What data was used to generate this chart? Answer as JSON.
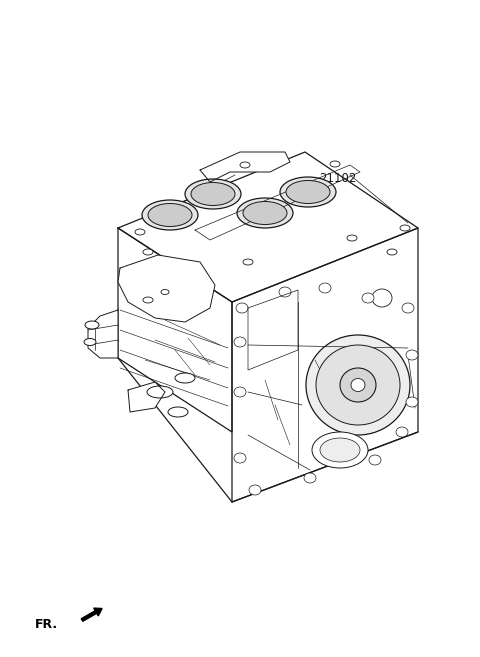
{
  "bg_color": "#ffffff",
  "line_color": "#1a1a1a",
  "line_width": 0.9,
  "label_21102": "21102",
  "label_fr": "FR.",
  "fig_width": 4.8,
  "fig_height": 6.57,
  "dpi": 100
}
